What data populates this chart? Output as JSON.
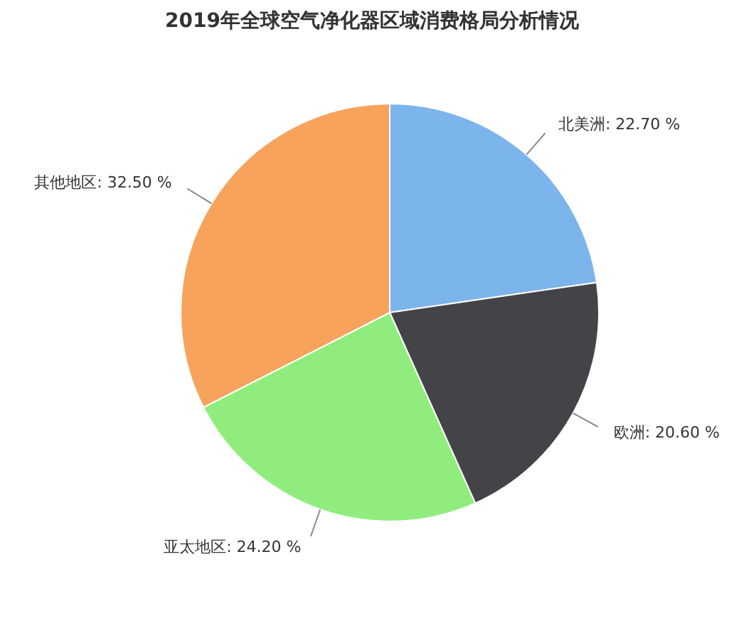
{
  "chart_data": {
    "type": "pie",
    "title": "2019年全球空气净化器区域消费格局分析情况",
    "categories": [
      "北美洲",
      "欧洲",
      "亚太地区",
      "其他地区"
    ],
    "values": [
      22.7,
      20.6,
      24.2,
      32.5
    ],
    "value_labels": [
      "22.70 %",
      "20.60 %",
      "24.20 %",
      "32.50 %"
    ],
    "colors": [
      "#7cb5ec",
      "#434348",
      "#90ed7d",
      "#f7a35c"
    ],
    "legend": false
  }
}
